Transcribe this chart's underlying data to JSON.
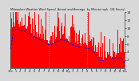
{
  "title": "Milwaukee Weather Wind Speed  Actual and Average  by Minute mph  (24 Hours)",
  "background_color": "#d8d8d8",
  "plot_bg_color": "#d8d8d8",
  "bar_color": "#ff0000",
  "avg_color": "#0000dd",
  "grid_color": "#888888",
  "ylim": [
    0,
    14
  ],
  "yticks": [
    2,
    4,
    6,
    8,
    10,
    12,
    14
  ],
  "num_points": 1440,
  "vline_positions": [
    0.333,
    0.667
  ],
  "seed": 99
}
